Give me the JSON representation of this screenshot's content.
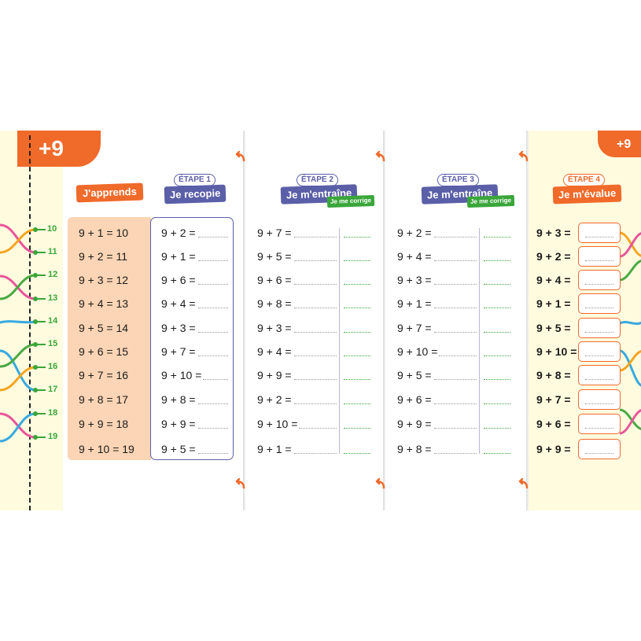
{
  "badge_left": "+9",
  "badge_right": "+9",
  "number_line": [
    "10",
    "11",
    "12",
    "13",
    "14",
    "15",
    "16",
    "17",
    "18",
    "19"
  ],
  "learn": {
    "title": "J'apprends",
    "rows": [
      "9 + 1 = 10",
      "9 + 2 = 11",
      "9 + 3 = 12",
      "9 + 4 = 13",
      "9 + 5 = 14",
      "9 + 6 = 15",
      "9 + 7 = 16",
      "9 + 8 = 17",
      "9 + 9 = 18",
      "9 + 10 = 19"
    ]
  },
  "step1": {
    "etape": "ÉTAPE 1",
    "title": "Je recopie",
    "rows": [
      "9 + 2 =",
      "9 + 1 =",
      "9 + 6 =",
      "9 + 4 =",
      "9 + 3 =",
      "9 + 7 =",
      "9 + 10 =",
      "9 + 8 =",
      "9 + 9 =",
      "9 + 5 ="
    ]
  },
  "step2": {
    "etape": "ÉTAPE 2",
    "title": "Je m'entraîne",
    "tag": "Je me corrige",
    "rows": [
      "9 + 7 =",
      "9 + 5 =",
      "9 + 6 =",
      "9 + 8 =",
      "9 + 3 =",
      "9 + 4 =",
      "9 + 9 =",
      "9 + 2 =",
      "9 + 10 =",
      "9 + 1 ="
    ]
  },
  "step3": {
    "etape": "ÉTAPE 3",
    "title": "Je m'entraîne",
    "tag": "Je me corrige",
    "rows": [
      "9 + 2 =",
      "9 + 4 =",
      "9 + 3 =",
      "9 + 1 =",
      "9 + 7 =",
      "9 + 10 =",
      "9 + 5 =",
      "9 + 6 =",
      "9 + 9 =",
      "9 + 8 ="
    ]
  },
  "step4": {
    "etape": "ÉTAPE 4",
    "title": "Je m'évalue",
    "rows": [
      "9 + 3 =",
      "9 + 2 =",
      "9 + 4 =",
      "9 + 1 =",
      "9 + 5 =",
      "9 + 10 =",
      "9 + 8 =",
      "9 + 7 =",
      "9 + 6 =",
      "9 + 9 ="
    ]
  },
  "colors": {
    "orange": "#f06a2a",
    "purple": "#5b5fa8",
    "green": "#3aa63a",
    "peach": "#fbd5b5",
    "cream": "#fffbdf"
  }
}
